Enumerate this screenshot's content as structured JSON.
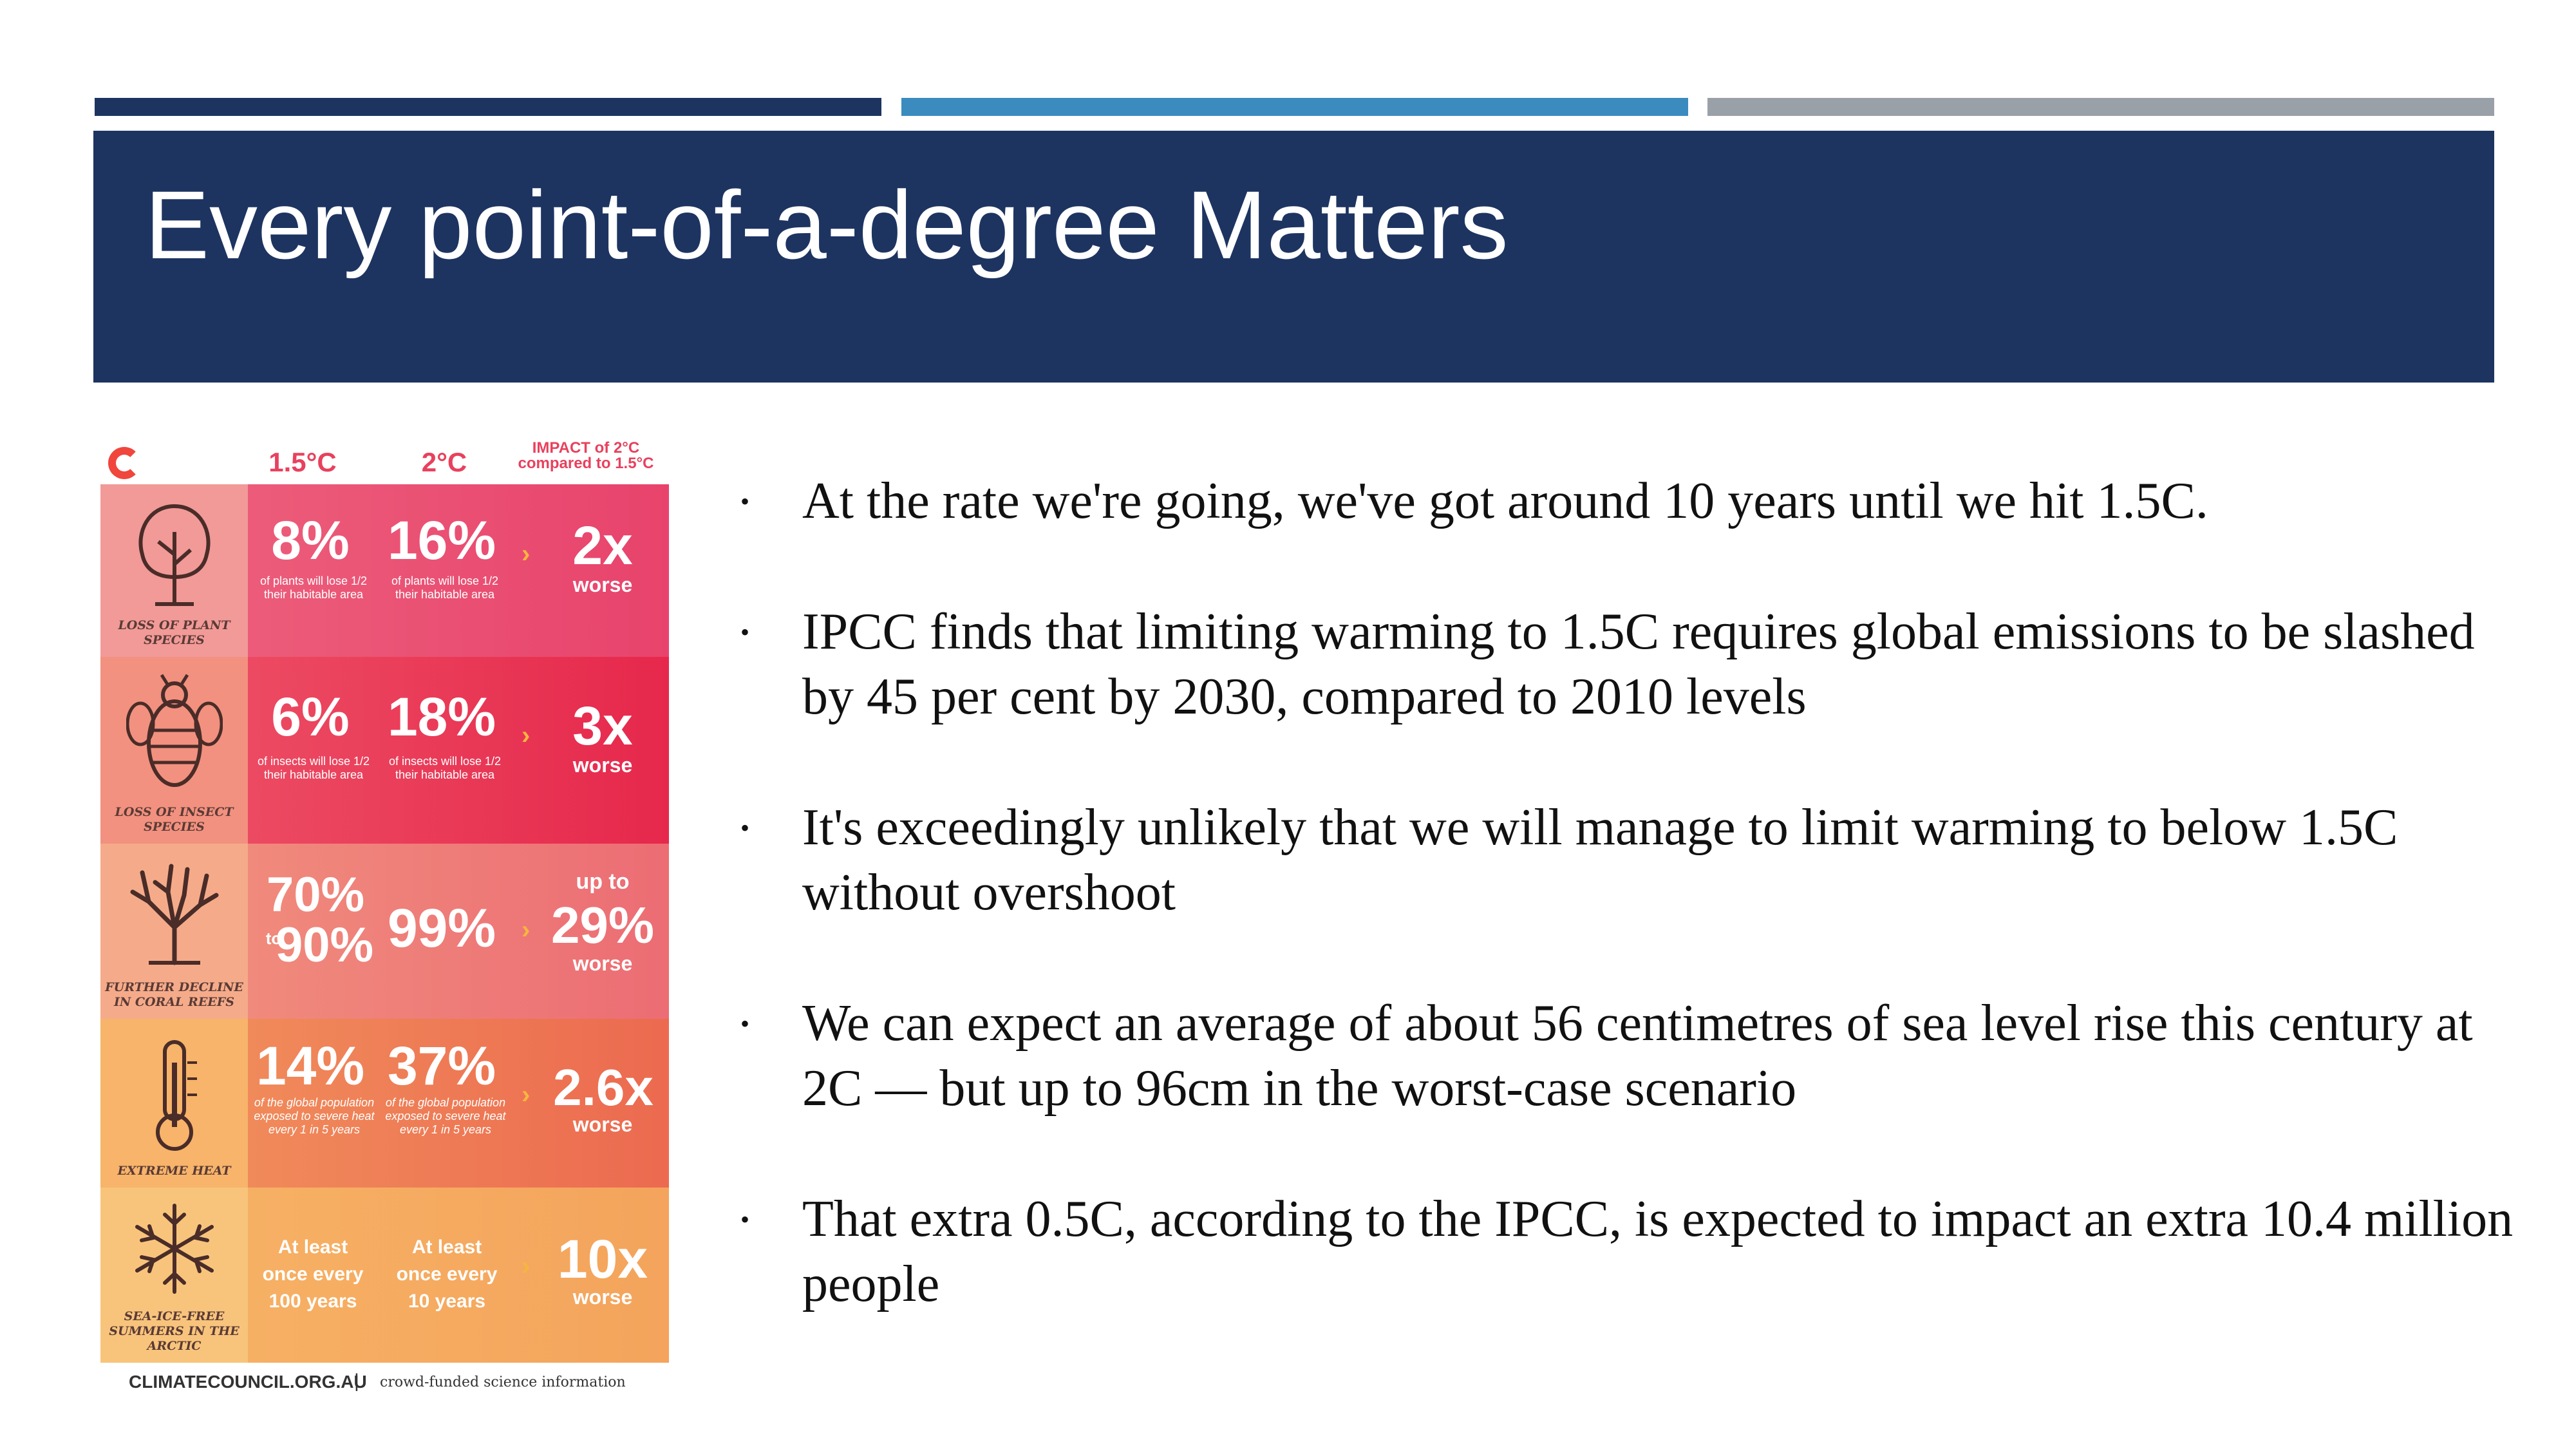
{
  "slide": {
    "title": "Every point-of-a-degree Matters",
    "accent_bars": [
      "#1d3461",
      "#3b8bbf",
      "#9aa0a8"
    ]
  },
  "infographic": {
    "columns": [
      "1.5°C",
      "2°C",
      "IMPACT of 2°C compared to 1.5°C"
    ],
    "rows": [
      {
        "label": "LOSS OF PLANT SPECIES",
        "icon": "tree-icon",
        "v15": "8%",
        "v15_note": "of plants will lose 1/2 their habitable area",
        "v2": "16%",
        "v2_note": "of plants will lose 1/2 their habitable area",
        "impact_pre": "",
        "impact": "2x",
        "impact_post": "worse"
      },
      {
        "label": "LOSS OF INSECT SPECIES",
        "icon": "bee-icon",
        "v15": "6%",
        "v15_note": "of insects will lose 1/2 their habitable area",
        "v2": "18%",
        "v2_note": "of insects will lose 1/2 their habitable area",
        "impact_pre": "",
        "impact": "3x",
        "impact_post": "worse"
      },
      {
        "label": "FURTHER DECLINE IN CORAL REEFS",
        "icon": "coral-icon",
        "v15": "70%",
        "v15_to": "to",
        "v15_b": "90%",
        "v2": "99%",
        "impact_pre": "up to",
        "impact": "29%",
        "impact_post": "worse"
      },
      {
        "label": "EXTREME HEAT",
        "icon": "thermometer-icon",
        "v15": "14%",
        "v15_note": "of the global population exposed to severe heat every 1 in 5 years",
        "v2": "37%",
        "v2_note": "of the global population exposed to severe heat every 1 in 5 years",
        "impact_pre": "",
        "impact": "2.6x",
        "impact_post": "worse"
      },
      {
        "label": "SEA-ICE-FREE SUMMERS IN THE ARCTIC",
        "icon": "snowflake-icon",
        "v15_text": "At least once every 100 years",
        "v2_text": "At least once every 10 years",
        "impact_pre": "",
        "impact": "10x",
        "impact_post": "worse"
      }
    ],
    "footer": {
      "site": "CLIMATECOUNCIL.ORG.AU",
      "separator": "|",
      "tagline": "crowd-funded science information"
    }
  },
  "bullets": [
    "At the rate we're going, we've got around 10 years until we hit 1.5C.",
    "IPCC finds that limiting warming to 1.5C requires global emissions to be slashed by 45 per cent by 2030, compared to 2010 levels",
    "It's exceedingly unlikely that we will manage to limit warming to below 1.5C without overshoot",
    "We can expect an average of about 56 centimetres of sea level rise this century at 2C — but up to 96cm in the worst-case scenario",
    "That extra 0.5C, according to the IPCC, is expected to impact an extra 10.4 million people"
  ]
}
